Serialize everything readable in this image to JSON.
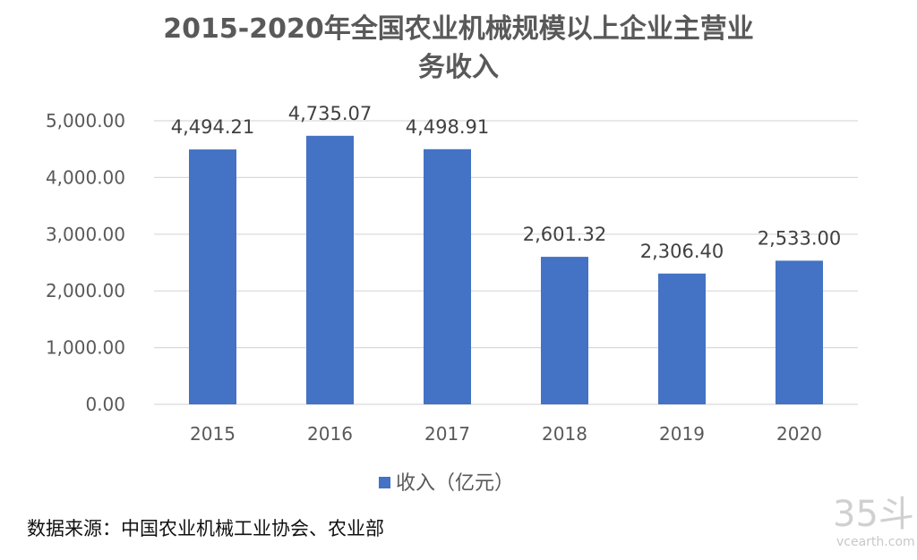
{
  "chart_data": {
    "type": "bar",
    "title_line1": "2015-2020年全国农业机械规模以上企业主营业",
    "title_line2": "务收入",
    "categories": [
      "2015",
      "2016",
      "2017",
      "2018",
      "2019",
      "2020"
    ],
    "series": [
      {
        "name": "收入（亿元）",
        "values": [
          4494.21,
          4735.07,
          4498.91,
          2601.32,
          2306.4,
          2533.0
        ],
        "labels": [
          "4,494.21",
          "4,735.07",
          "4,498.91",
          "2,601.32",
          "2,306.40",
          "2,533.00"
        ],
        "color": "#4472c4"
      }
    ],
    "ylim": [
      0,
      5000
    ],
    "yticks": [
      "0.00",
      "1,000.00",
      "2,000.00",
      "3,000.00",
      "4,000.00",
      "5,000.00"
    ],
    "grid": true,
    "legend_position": "bottom",
    "xlabel": "",
    "ylabel": ""
  },
  "source": "数据来源：中国农业机械工业协会、农业部",
  "watermark": {
    "brand": "35斗",
    "site": "vcearth.com"
  },
  "colors": {
    "bar": "#4472c4",
    "gridline": "#d9d9d9",
    "text": "#595959"
  }
}
